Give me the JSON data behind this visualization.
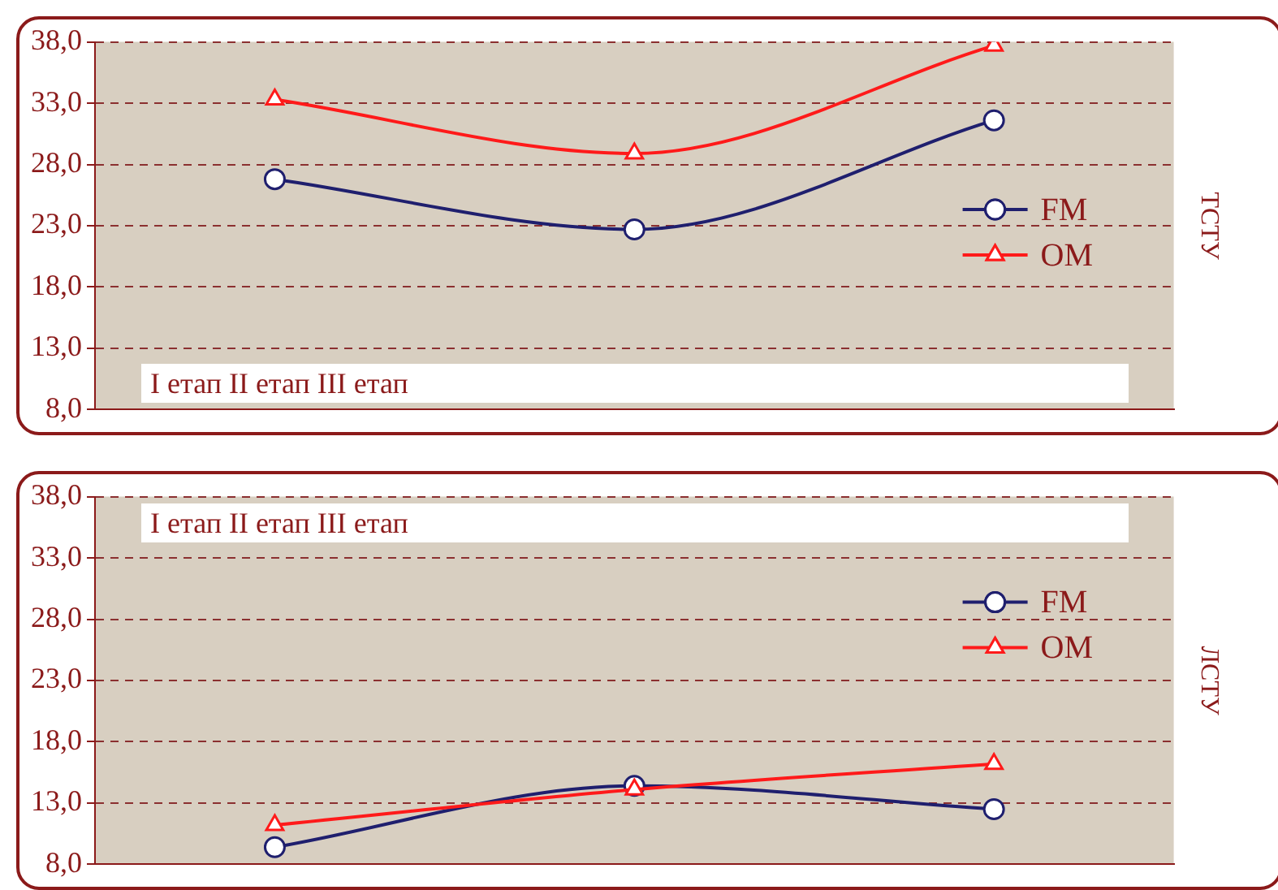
{
  "chart_data": [
    {
      "type": "line",
      "ylabel": "ТСТУ",
      "annotations": [
        "I етап II етап III етап"
      ],
      "categories": [
        null,
        null,
        null
      ],
      "series": [
        {
          "name": "FM",
          "color": "#1f1f6e",
          "marker": "circle",
          "values": [
            26.8,
            22.7,
            31.6
          ]
        },
        {
          "name": "OM",
          "color": "#ff1a1a",
          "marker": "triangle",
          "values": [
            33.3,
            28.9,
            37.7
          ]
        }
      ],
      "ylim": [
        8,
        38
      ],
      "yticks": [
        {
          "value": 8,
          "label": "8,0"
        },
        {
          "value": 13,
          "label": "13,0"
        },
        {
          "value": 18,
          "label": "18,0"
        },
        {
          "value": 23,
          "label": "23,0"
        },
        {
          "value": 28,
          "label": "28,0"
        },
        {
          "value": 33,
          "label": "33,0"
        },
        {
          "value": 38,
          "label": "38,0"
        }
      ],
      "grid": "y",
      "legend": "right",
      "tick_labels": "y"
    },
    {
      "type": "line",
      "ylabel": "ЛСТУ",
      "annotations": [
        "I етап II етап III етап"
      ],
      "categories": [
        null,
        null,
        null
      ],
      "series": [
        {
          "name": "FM",
          "color": "#1f1f6e",
          "marker": "circle",
          "values": [
            9.4,
            14.4,
            12.5
          ]
        },
        {
          "name": "OM",
          "color": "#ff1a1a",
          "marker": "triangle",
          "values": [
            11.2,
            14.1,
            16.2
          ]
        }
      ],
      "ylim": [
        8,
        38
      ],
      "yticks": [
        {
          "value": 8,
          "label": "8,0"
        },
        {
          "value": 13,
          "label": "13,0"
        },
        {
          "value": 18,
          "label": "18,0"
        },
        {
          "value": 23,
          "label": "23,0"
        },
        {
          "value": 28,
          "label": "28,0"
        },
        {
          "value": 33,
          "label": "33,0"
        },
        {
          "value": 38,
          "label": "38,0"
        }
      ],
      "grid": "y",
      "legend": "right",
      "tick_labels": "y"
    }
  ]
}
